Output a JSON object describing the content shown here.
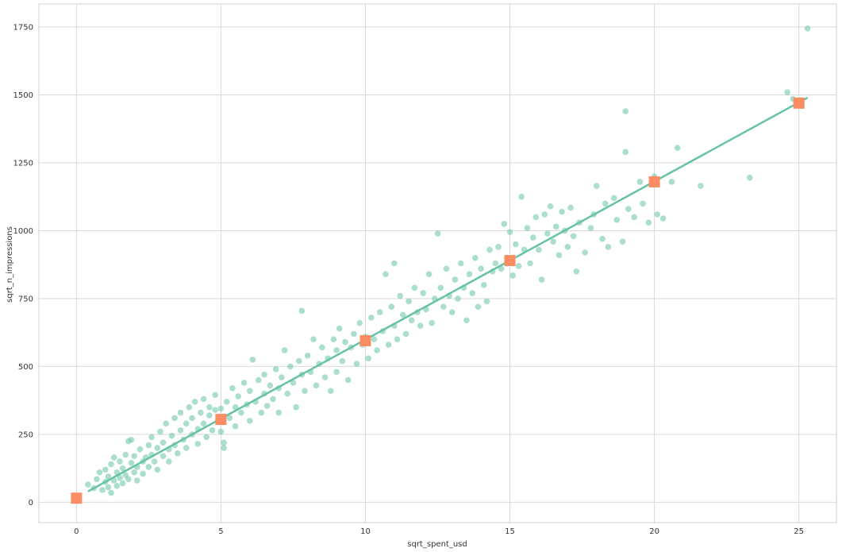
{
  "chart_data": {
    "type": "scatter",
    "title": "",
    "xlabel": "sqrt_spent_usd",
    "ylabel": "sqrt_n_impressions",
    "xlim": [
      -1.3,
      26.3
    ],
    "ylim": [
      -75,
      1835
    ],
    "xticks": [
      0,
      5,
      10,
      15,
      20,
      25
    ],
    "yticks": [
      0,
      250,
      500,
      750,
      1000,
      1250,
      1500,
      1750
    ],
    "xtick_labels": [
      "0",
      "5",
      "10",
      "15",
      "20",
      "25"
    ],
    "ytick_labels": [
      "0",
      "250",
      "500",
      "750",
      "1000",
      "1250",
      "1500",
      "1750"
    ],
    "grid": true,
    "colors": {
      "scatter": "#66c2a5",
      "line": "#66c2a5",
      "markers": "#fc8d62",
      "grid": "#d9d9d9"
    },
    "series": [
      {
        "kind": "scatter",
        "note": "approximately 700 points clustered around the regression line",
        "points": [
          [
            0.4,
            65
          ],
          [
            0.6,
            52
          ],
          [
            0.7,
            85
          ],
          [
            0.8,
            110
          ],
          [
            0.9,
            45
          ],
          [
            1.0,
            75
          ],
          [
            1.0,
            120
          ],
          [
            1.1,
            55
          ],
          [
            1.1,
            95
          ],
          [
            1.2,
            140
          ],
          [
            1.2,
            35
          ],
          [
            1.3,
            80
          ],
          [
            1.3,
            165
          ],
          [
            1.4,
            60
          ],
          [
            1.4,
            110
          ],
          [
            1.5,
            90
          ],
          [
            1.5,
            150
          ],
          [
            1.6,
            70
          ],
          [
            1.6,
            125
          ],
          [
            1.7,
            175
          ],
          [
            1.7,
            100
          ],
          [
            1.8,
            225
          ],
          [
            1.8,
            85
          ],
          [
            1.9,
            145
          ],
          [
            1.9,
            230
          ],
          [
            2.0,
            110
          ],
          [
            2.0,
            170
          ],
          [
            2.1,
            80
          ],
          [
            2.1,
            130
          ],
          [
            2.2,
            195
          ],
          [
            2.3,
            150
          ],
          [
            2.3,
            105
          ],
          [
            2.4,
            165
          ],
          [
            2.5,
            130
          ],
          [
            2.5,
            210
          ],
          [
            2.6,
            175
          ],
          [
            2.6,
            240
          ],
          [
            2.7,
            150
          ],
          [
            2.8,
            200
          ],
          [
            2.8,
            120
          ],
          [
            2.9,
            260
          ],
          [
            3.0,
            170
          ],
          [
            3.0,
            220
          ],
          [
            3.1,
            290
          ],
          [
            3.2,
            195
          ],
          [
            3.2,
            150
          ],
          [
            3.3,
            245
          ],
          [
            3.4,
            210
          ],
          [
            3.4,
            310
          ],
          [
            3.5,
            180
          ],
          [
            3.6,
            265
          ],
          [
            3.6,
            330
          ],
          [
            3.7,
            230
          ],
          [
            3.8,
            290
          ],
          [
            3.8,
            200
          ],
          [
            3.9,
            350
          ],
          [
            4.0,
            250
          ],
          [
            4.0,
            310
          ],
          [
            4.1,
            370
          ],
          [
            4.2,
            270
          ],
          [
            4.2,
            215
          ],
          [
            4.3,
            330
          ],
          [
            4.4,
            290
          ],
          [
            4.4,
            380
          ],
          [
            4.5,
            240
          ],
          [
            4.6,
            320
          ],
          [
            4.6,
            350
          ],
          [
            4.7,
            265
          ],
          [
            4.8,
            340
          ],
          [
            4.8,
            395
          ],
          [
            4.9,
            300
          ],
          [
            5.0,
            260
          ],
          [
            5.0,
            345
          ],
          [
            5.1,
            220
          ],
          [
            5.1,
            200
          ],
          [
            5.2,
            370
          ],
          [
            5.3,
            310
          ],
          [
            5.4,
            420
          ],
          [
            5.5,
            280
          ],
          [
            5.5,
            350
          ],
          [
            5.6,
            390
          ],
          [
            5.7,
            330
          ],
          [
            5.8,
            440
          ],
          [
            5.9,
            360
          ],
          [
            6.0,
            300
          ],
          [
            6.0,
            410
          ],
          [
            6.1,
            525
          ],
          [
            6.2,
            370
          ],
          [
            6.3,
            450
          ],
          [
            6.4,
            330
          ],
          [
            6.5,
            400
          ],
          [
            6.5,
            470
          ],
          [
            6.6,
            355
          ],
          [
            6.7,
            430
          ],
          [
            6.8,
            380
          ],
          [
            6.9,
            490
          ],
          [
            7.0,
            420
          ],
          [
            7.0,
            330
          ],
          [
            7.1,
            460
          ],
          [
            7.2,
            560
          ],
          [
            7.3,
            400
          ],
          [
            7.4,
            500
          ],
          [
            7.5,
            440
          ],
          [
            7.6,
            350
          ],
          [
            7.7,
            520
          ],
          [
            7.8,
            470
          ],
          [
            7.8,
            705
          ],
          [
            7.9,
            410
          ],
          [
            8.0,
            540
          ],
          [
            8.1,
            480
          ],
          [
            8.2,
            600
          ],
          [
            8.3,
            430
          ],
          [
            8.4,
            510
          ],
          [
            8.5,
            570
          ],
          [
            8.6,
            460
          ],
          [
            8.7,
            530
          ],
          [
            8.8,
            410
          ],
          [
            8.9,
            600
          ],
          [
            9.0,
            480
          ],
          [
            9.0,
            560
          ],
          [
            9.1,
            640
          ],
          [
            9.2,
            520
          ],
          [
            9.3,
            590
          ],
          [
            9.4,
            450
          ],
          [
            9.5,
            570
          ],
          [
            9.6,
            620
          ],
          [
            9.7,
            510
          ],
          [
            9.8,
            660
          ],
          [
            9.9,
            580
          ],
          [
            10.0,
            610
          ],
          [
            10.1,
            530
          ],
          [
            10.2,
            680
          ],
          [
            10.3,
            600
          ],
          [
            10.4,
            560
          ],
          [
            10.5,
            700
          ],
          [
            10.6,
            630
          ],
          [
            10.7,
            840
          ],
          [
            10.8,
            580
          ],
          [
            10.9,
            720
          ],
          [
            11.0,
            650
          ],
          [
            11.0,
            880
          ],
          [
            11.1,
            600
          ],
          [
            11.2,
            760
          ],
          [
            11.3,
            690
          ],
          [
            11.4,
            620
          ],
          [
            11.5,
            740
          ],
          [
            11.6,
            670
          ],
          [
            11.7,
            790
          ],
          [
            11.8,
            700
          ],
          [
            11.9,
            650
          ],
          [
            12.0,
            770
          ],
          [
            12.1,
            710
          ],
          [
            12.2,
            840
          ],
          [
            12.3,
            660
          ],
          [
            12.4,
            750
          ],
          [
            12.5,
            990
          ],
          [
            12.6,
            790
          ],
          [
            12.7,
            720
          ],
          [
            12.8,
            860
          ],
          [
            12.9,
            760
          ],
          [
            13.0,
            700
          ],
          [
            13.1,
            820
          ],
          [
            13.2,
            750
          ],
          [
            13.3,
            880
          ],
          [
            13.4,
            790
          ],
          [
            13.5,
            670
          ],
          [
            13.6,
            840
          ],
          [
            13.7,
            770
          ],
          [
            13.8,
            900
          ],
          [
            13.9,
            720
          ],
          [
            14.0,
            860
          ],
          [
            14.1,
            800
          ],
          [
            14.2,
            740
          ],
          [
            14.3,
            930
          ],
          [
            14.4,
            850
          ],
          [
            14.5,
            880
          ],
          [
            14.6,
            940
          ],
          [
            14.7,
            860
          ],
          [
            14.8,
            1025
          ],
          [
            14.9,
            900
          ],
          [
            15.0,
            995
          ],
          [
            15.1,
            835
          ],
          [
            15.2,
            950
          ],
          [
            15.3,
            870
          ],
          [
            15.4,
            1125
          ],
          [
            15.5,
            930
          ],
          [
            15.6,
            1010
          ],
          [
            15.7,
            880
          ],
          [
            15.8,
            975
          ],
          [
            15.9,
            1050
          ],
          [
            16.0,
            930
          ],
          [
            16.1,
            820
          ],
          [
            16.2,
            1060
          ],
          [
            16.3,
            990
          ],
          [
            16.4,
            1090
          ],
          [
            16.5,
            960
          ],
          [
            16.6,
            1015
          ],
          [
            16.7,
            910
          ],
          [
            16.8,
            1070
          ],
          [
            16.9,
            1000
          ],
          [
            17.0,
            940
          ],
          [
            17.1,
            1085
          ],
          [
            17.2,
            980
          ],
          [
            17.3,
            850
          ],
          [
            17.4,
            1030
          ],
          [
            17.6,
            920
          ],
          [
            17.8,
            1010
          ],
          [
            17.9,
            1060
          ],
          [
            18.0,
            1165
          ],
          [
            18.2,
            970
          ],
          [
            18.3,
            1100
          ],
          [
            18.4,
            940
          ],
          [
            18.6,
            1120
          ],
          [
            18.7,
            1040
          ],
          [
            18.9,
            960
          ],
          [
            19.0,
            1440
          ],
          [
            19.0,
            1290
          ],
          [
            19.1,
            1080
          ],
          [
            19.3,
            1050
          ],
          [
            19.5,
            1180
          ],
          [
            19.6,
            1100
          ],
          [
            19.8,
            1030
          ],
          [
            20.0,
            1200
          ],
          [
            20.1,
            1060
          ],
          [
            20.3,
            1045
          ],
          [
            20.6,
            1180
          ],
          [
            20.8,
            1305
          ],
          [
            21.6,
            1165
          ],
          [
            23.3,
            1195
          ],
          [
            24.6,
            1510
          ],
          [
            24.8,
            1485
          ],
          [
            25.1,
            1460
          ],
          [
            25.3,
            1745
          ]
        ]
      },
      {
        "kind": "regression-line",
        "x": [
          0.4,
          25.3
        ],
        "y": [
          40,
          1490
        ]
      },
      {
        "kind": "markers",
        "marker": "square",
        "x": [
          0,
          5,
          10,
          15,
          20,
          25
        ],
        "y": [
          15,
          305,
          595,
          890,
          1180,
          1470
        ]
      }
    ]
  }
}
